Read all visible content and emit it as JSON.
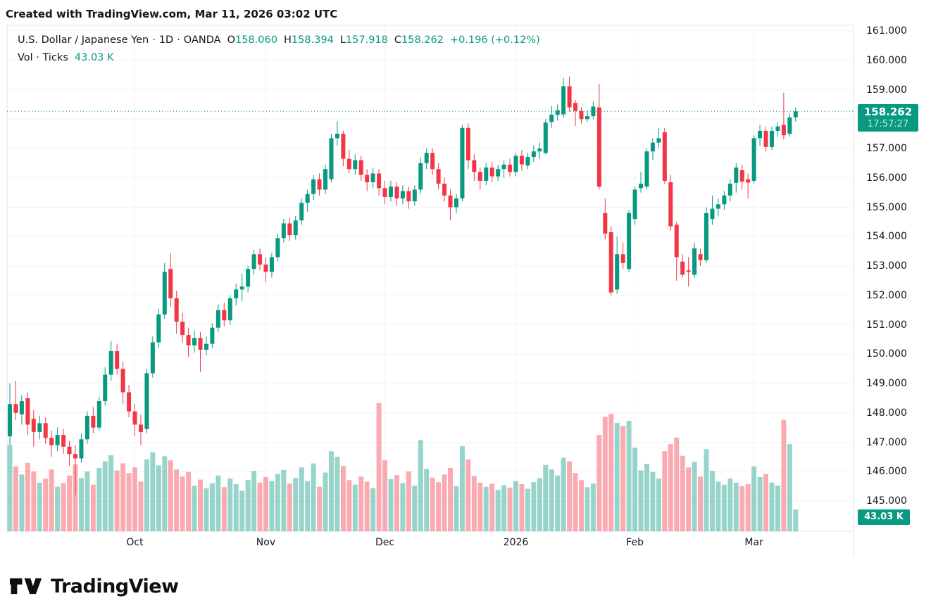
{
  "watermark": "Created with TradingView.com, Mar 11, 2026 03:02 UTC",
  "legend": {
    "symbol": "U.S. Dollar / Japanese Yen",
    "sep": "·",
    "interval": "1D",
    "exchange": "OANDA",
    "o_label": "O",
    "o_value": "158.060",
    "h_label": "H",
    "h_value": "158.394",
    "l_label": "L",
    "l_value": "157.918",
    "c_label": "C",
    "c_value": "158.262",
    "change": "+0.196 (+0.12%)",
    "vol_label": "Vol · Ticks",
    "vol_value": "43.03 K"
  },
  "axis": {
    "price_ticks": [
      "161.000",
      "160.000",
      "159.000",
      "158.000",
      "157.000",
      "156.000",
      "155.000",
      "154.000",
      "153.000",
      "152.000",
      "151.000",
      "150.000",
      "149.000",
      "148.000",
      "147.000",
      "146.000",
      "145.000"
    ],
    "last_price": {
      "value": "158.262",
      "countdown": "17:57:27"
    },
    "last_volume": "43.03 K"
  },
  "logo": {
    "text": "TradingView"
  },
  "colors": {
    "up": "#089981",
    "down": "#F23645",
    "grid": "#f0f3fa",
    "border": "#e0e3eb",
    "text": "#131722",
    "accent": "#089981"
  },
  "chart_data": {
    "type": "candlestick+volume",
    "title": "U.S. Dollar / Japanese Yen, 1D, OANDA",
    "price_axis_ticks": [
      145,
      146,
      147,
      148,
      149,
      150,
      151,
      152,
      153,
      154,
      155,
      156,
      157,
      158,
      159,
      160,
      161
    ],
    "price_axis_visible_range": [
      144.0,
      161.2
    ],
    "volume_axis_max_k": 260,
    "last_close": 158.262,
    "grid": true,
    "legend_position": "top-left",
    "x_ticks": [
      {
        "label": "Oct",
        "bar": 21
      },
      {
        "label": "Nov",
        "bar": 43
      },
      {
        "label": "Dec",
        "bar": 63
      },
      {
        "label": "2026",
        "bar": 85
      },
      {
        "label": "Feb",
        "bar": 105
      },
      {
        "label": "Mar",
        "bar": 125
      }
    ],
    "candles_format": [
      "open",
      "high",
      "low",
      "close",
      "volume_k"
    ],
    "candles": [
      [
        147.2,
        149.0,
        146.9,
        148.3,
        170
      ],
      [
        148.3,
        149.1,
        147.75,
        148.0,
        128
      ],
      [
        147.95,
        148.6,
        147.6,
        148.4,
        112
      ],
      [
        148.5,
        148.7,
        147.25,
        147.6,
        135
      ],
      [
        147.8,
        148.1,
        146.85,
        147.35,
        118
      ],
      [
        147.35,
        147.9,
        147.1,
        147.65,
        96
      ],
      [
        147.65,
        147.85,
        146.95,
        147.15,
        104
      ],
      [
        147.15,
        147.4,
        146.5,
        146.9,
        122
      ],
      [
        146.9,
        147.5,
        146.7,
        147.25,
        88
      ],
      [
        147.25,
        147.45,
        146.6,
        146.85,
        95
      ],
      [
        146.85,
        147.05,
        146.2,
        146.6,
        110
      ],
      [
        146.6,
        146.9,
        145.2,
        146.45,
        132
      ],
      [
        146.45,
        147.3,
        146.3,
        147.1,
        105
      ],
      [
        147.1,
        148.05,
        146.95,
        147.9,
        118
      ],
      [
        147.9,
        148.2,
        147.3,
        147.5,
        92
      ],
      [
        147.5,
        148.55,
        147.4,
        148.4,
        125
      ],
      [
        148.4,
        149.55,
        148.25,
        149.3,
        138
      ],
      [
        149.3,
        150.45,
        149.1,
        150.1,
        150
      ],
      [
        150.1,
        150.35,
        149.3,
        149.5,
        120
      ],
      [
        149.5,
        149.75,
        148.3,
        148.7,
        134
      ],
      [
        148.7,
        148.95,
        147.85,
        148.05,
        115
      ],
      [
        148.05,
        148.3,
        147.2,
        147.6,
        126
      ],
      [
        147.6,
        147.95,
        146.9,
        147.35,
        98
      ],
      [
        147.45,
        149.5,
        147.3,
        149.35,
        142
      ],
      [
        149.35,
        150.6,
        149.2,
        150.4,
        156
      ],
      [
        150.4,
        151.55,
        150.2,
        151.35,
        130
      ],
      [
        151.35,
        153.1,
        151.2,
        152.8,
        148
      ],
      [
        152.9,
        153.45,
        151.6,
        151.9,
        140
      ],
      [
        151.9,
        152.15,
        150.7,
        151.1,
        122
      ],
      [
        151.1,
        151.4,
        150.4,
        150.65,
        108
      ],
      [
        150.65,
        150.9,
        149.9,
        150.3,
        117
      ],
      [
        150.3,
        150.8,
        150.05,
        150.55,
        90
      ],
      [
        150.55,
        150.75,
        149.4,
        150.15,
        102
      ],
      [
        150.15,
        150.6,
        149.95,
        150.35,
        85
      ],
      [
        150.35,
        151.05,
        150.2,
        150.9,
        95
      ],
      [
        150.9,
        151.7,
        150.75,
        151.5,
        110
      ],
      [
        151.5,
        151.75,
        150.95,
        151.15,
        87
      ],
      [
        151.15,
        152.0,
        151.0,
        151.9,
        104
      ],
      [
        151.9,
        152.4,
        151.65,
        152.2,
        93
      ],
      [
        152.2,
        152.75,
        151.8,
        152.3,
        80
      ],
      [
        152.3,
        153.0,
        152.1,
        152.9,
        101
      ],
      [
        152.9,
        153.55,
        152.7,
        153.4,
        119
      ],
      [
        153.4,
        153.6,
        152.85,
        153.05,
        96
      ],
      [
        153.05,
        153.3,
        152.45,
        152.8,
        107
      ],
      [
        152.8,
        153.45,
        152.6,
        153.3,
        99
      ],
      [
        153.3,
        154.1,
        153.15,
        153.95,
        113
      ],
      [
        153.95,
        154.6,
        153.8,
        154.45,
        121
      ],
      [
        154.45,
        154.65,
        153.85,
        154.05,
        94
      ],
      [
        154.05,
        154.7,
        153.9,
        154.55,
        105
      ],
      [
        154.55,
        155.3,
        154.4,
        155.15,
        126
      ],
      [
        155.15,
        155.6,
        154.85,
        155.45,
        99
      ],
      [
        155.45,
        156.1,
        155.25,
        155.95,
        134
      ],
      [
        155.95,
        156.15,
        155.4,
        155.6,
        88
      ],
      [
        155.6,
        156.45,
        155.45,
        156.3,
        116
      ],
      [
        155.95,
        157.5,
        155.85,
        157.35,
        158
      ],
      [
        157.35,
        157.93,
        157.1,
        157.5,
        147
      ],
      [
        157.5,
        157.6,
        156.4,
        156.65,
        129
      ],
      [
        156.65,
        156.95,
        156.15,
        156.3,
        101
      ],
      [
        156.3,
        156.8,
        156.1,
        156.6,
        92
      ],
      [
        156.6,
        156.75,
        155.9,
        156.1,
        108
      ],
      [
        156.1,
        156.3,
        155.55,
        155.85,
        98
      ],
      [
        155.85,
        156.35,
        155.65,
        156.15,
        85
      ],
      [
        156.15,
        156.3,
        155.4,
        155.65,
        253
      ],
      [
        155.65,
        155.9,
        155.1,
        155.35,
        140
      ],
      [
        155.35,
        155.9,
        155.2,
        155.7,
        103
      ],
      [
        155.7,
        155.85,
        155.05,
        155.3,
        111
      ],
      [
        155.3,
        155.75,
        155.1,
        155.55,
        95
      ],
      [
        155.55,
        155.7,
        154.95,
        155.2,
        118
      ],
      [
        155.2,
        155.75,
        155.05,
        155.6,
        90
      ],
      [
        155.6,
        156.7,
        155.45,
        156.5,
        180
      ],
      [
        156.5,
        157.0,
        156.3,
        156.85,
        123
      ],
      [
        156.85,
        157.0,
        156.1,
        156.3,
        106
      ],
      [
        156.3,
        156.5,
        155.6,
        155.8,
        97
      ],
      [
        155.8,
        156.0,
        155.2,
        155.4,
        112
      ],
      [
        155.4,
        155.6,
        154.55,
        155.0,
        125
      ],
      [
        155.0,
        155.45,
        154.8,
        155.3,
        89
      ],
      [
        155.3,
        157.8,
        155.2,
        157.7,
        168
      ],
      [
        157.7,
        157.85,
        156.3,
        156.6,
        142
      ],
      [
        156.6,
        156.8,
        155.9,
        156.2,
        109
      ],
      [
        156.2,
        156.35,
        155.6,
        155.9,
        96
      ],
      [
        155.9,
        156.5,
        155.75,
        156.35,
        88
      ],
      [
        156.35,
        156.55,
        155.85,
        156.05,
        94
      ],
      [
        156.05,
        156.45,
        155.9,
        156.3,
        82
      ],
      [
        156.3,
        156.6,
        156.0,
        156.45,
        91
      ],
      [
        156.45,
        156.65,
        156.05,
        156.2,
        86
      ],
      [
        156.2,
        156.85,
        156.05,
        156.75,
        99
      ],
      [
        156.75,
        156.95,
        156.25,
        156.46,
        93
      ],
      [
        156.42,
        156.85,
        156.3,
        156.71,
        84
      ],
      [
        156.71,
        157.1,
        156.55,
        156.9,
        97
      ],
      [
        156.9,
        157.2,
        156.65,
        157.0,
        105
      ],
      [
        156.85,
        158.0,
        156.8,
        157.88,
        131
      ],
      [
        157.9,
        158.45,
        157.7,
        158.15,
        122
      ],
      [
        158.15,
        158.5,
        157.95,
        158.3,
        110
      ],
      [
        158.16,
        159.4,
        158.05,
        159.12,
        145
      ],
      [
        159.12,
        159.45,
        158.25,
        158.4,
        138
      ],
      [
        158.55,
        158.65,
        157.76,
        158.28,
        115
      ],
      [
        158.28,
        158.4,
        157.85,
        158.0,
        101
      ],
      [
        158.0,
        158.3,
        157.9,
        158.1,
        87
      ],
      [
        158.1,
        158.6,
        158.0,
        158.43,
        94
      ],
      [
        158.4,
        159.2,
        155.6,
        155.7,
        190
      ],
      [
        154.8,
        155.3,
        153.9,
        154.1,
        226
      ],
      [
        154.15,
        154.35,
        152.0,
        152.1,
        232
      ],
      [
        152.2,
        154.0,
        152.05,
        153.4,
        214
      ],
      [
        153.4,
        153.8,
        152.9,
        153.1,
        208
      ],
      [
        152.9,
        154.9,
        152.8,
        154.8,
        218
      ],
      [
        154.6,
        155.7,
        154.4,
        155.6,
        165
      ],
      [
        155.65,
        156.2,
        155.5,
        155.8,
        120
      ],
      [
        155.7,
        157.0,
        155.6,
        156.9,
        133
      ],
      [
        156.9,
        157.35,
        156.6,
        157.2,
        117
      ],
      [
        157.2,
        157.7,
        157.0,
        157.35,
        104
      ],
      [
        157.55,
        157.7,
        155.8,
        155.9,
        158
      ],
      [
        155.85,
        156.1,
        154.2,
        154.35,
        172
      ],
      [
        154.4,
        154.5,
        152.5,
        153.3,
        185
      ],
      [
        153.15,
        153.4,
        152.6,
        152.7,
        149
      ],
      [
        152.85,
        153.3,
        152.3,
        152.8,
        126
      ],
      [
        152.7,
        153.8,
        152.6,
        153.6,
        137
      ],
      [
        153.4,
        153.6,
        153.0,
        153.2,
        108
      ],
      [
        153.2,
        155.0,
        153.1,
        154.8,
        162
      ],
      [
        154.6,
        155.4,
        154.4,
        154.95,
        119
      ],
      [
        154.95,
        155.3,
        154.7,
        155.1,
        98
      ],
      [
        155.1,
        155.55,
        154.9,
        155.4,
        92
      ],
      [
        155.4,
        155.95,
        155.2,
        155.8,
        104
      ],
      [
        155.83,
        156.5,
        155.5,
        156.35,
        96
      ],
      [
        156.26,
        156.45,
        155.6,
        155.87,
        89
      ],
      [
        155.95,
        156.15,
        155.3,
        155.84,
        93
      ],
      [
        155.9,
        157.45,
        155.8,
        157.35,
        128
      ],
      [
        157.35,
        157.8,
        157.1,
        157.6,
        107
      ],
      [
        157.6,
        157.75,
        156.9,
        157.05,
        113
      ],
      [
        157.05,
        157.75,
        156.95,
        157.6,
        96
      ],
      [
        157.6,
        157.9,
        157.4,
        157.75,
        90
      ],
      [
        157.8,
        158.9,
        157.3,
        157.45,
        220
      ],
      [
        157.5,
        158.2,
        157.4,
        158.06,
        172
      ],
      [
        158.06,
        158.394,
        157.918,
        158.262,
        43.03
      ]
    ]
  }
}
